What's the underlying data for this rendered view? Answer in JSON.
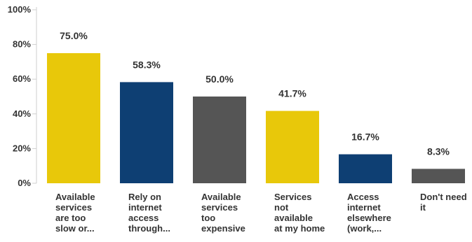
{
  "chart_data": {
    "type": "bar",
    "categories": [
      [
        "Available",
        "services",
        "are too",
        "slow or..."
      ],
      [
        "Rely on",
        "internet",
        "access",
        "through..."
      ],
      [
        "Available",
        "services",
        "too",
        "expensive"
      ],
      [
        "Services",
        "not",
        "available",
        "at my home"
      ],
      [
        "Access",
        "internet",
        "elsewhere",
        "(work,..."
      ],
      [
        "Don't need",
        "it"
      ]
    ],
    "values": [
      75.0,
      58.3,
      50.0,
      41.7,
      16.7,
      8.3
    ],
    "value_labels": [
      "75.0%",
      "58.3%",
      "50.0%",
      "41.7%",
      "16.7%",
      "8.3%"
    ],
    "colors": [
      "#e8c80a",
      "#0e3f73",
      "#555555",
      "#e8c80a",
      "#0e3f73",
      "#555555"
    ],
    "ylim": [
      0,
      100
    ],
    "yticks": [
      0,
      20,
      40,
      60,
      80,
      100
    ],
    "ytick_labels": [
      "0%",
      "20%",
      "40%",
      "60%",
      "80%",
      "100%"
    ],
    "grid": false,
    "title": "",
    "xlabel": "",
    "ylabel": ""
  }
}
